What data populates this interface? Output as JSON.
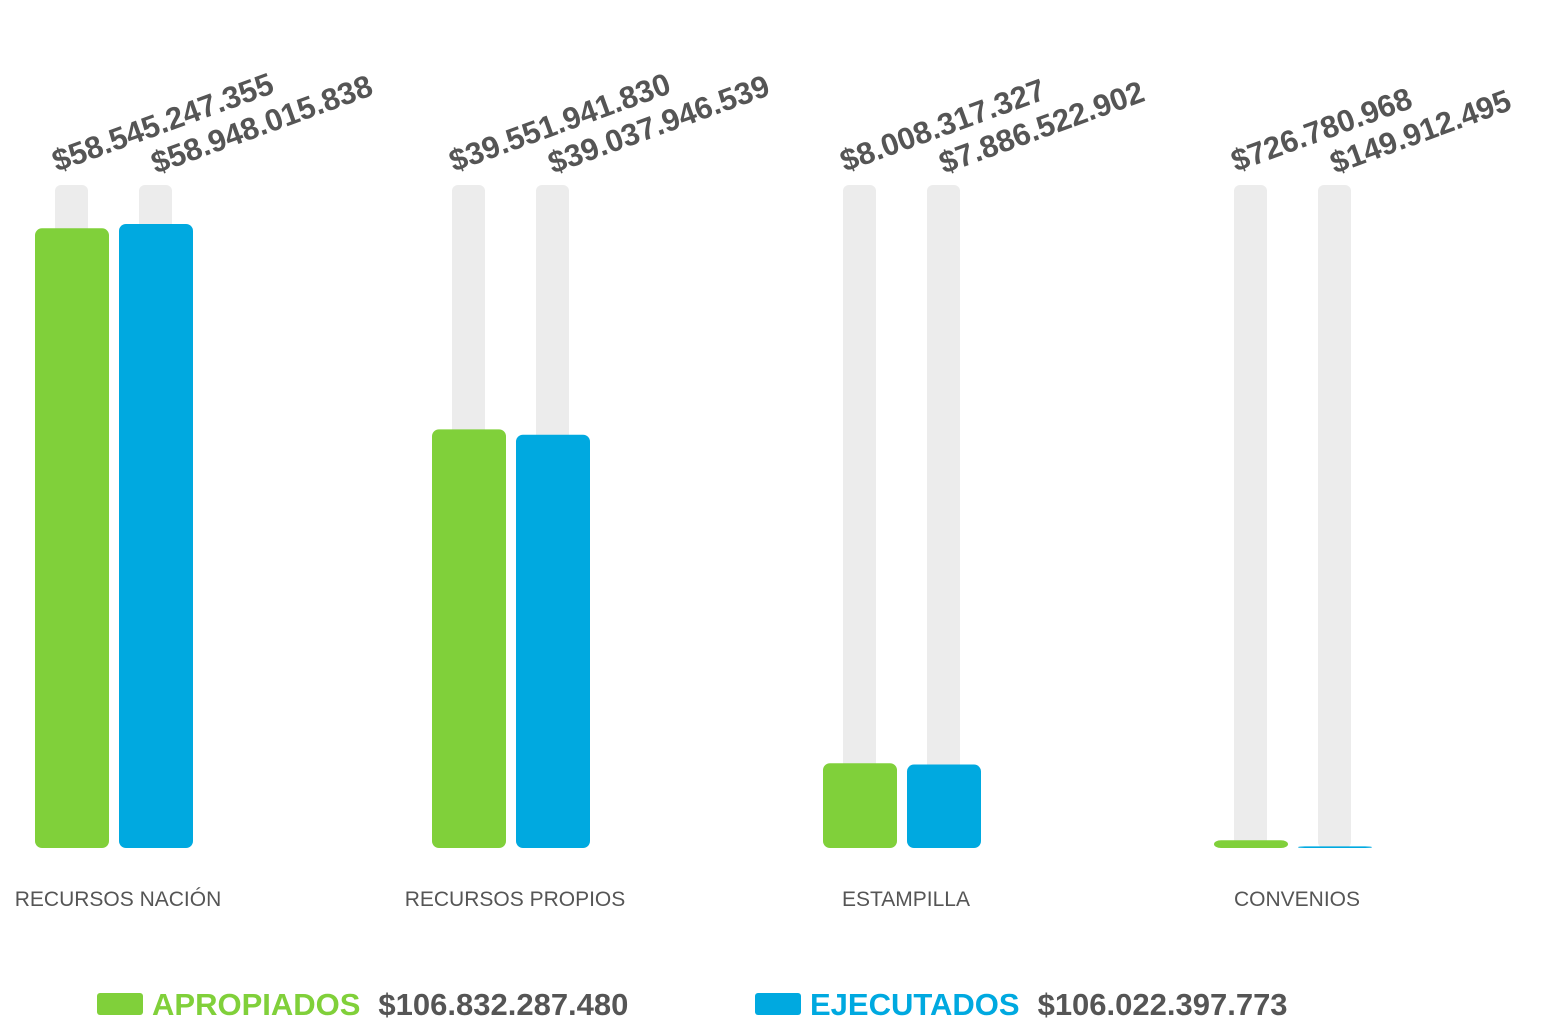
{
  "chart_data": {
    "type": "bar",
    "categories": [
      "RECURSOS NACIÓN",
      "RECURSOS PROPIOS",
      "ESTAMPILLA",
      "CONVENIOS"
    ],
    "series": [
      {
        "name": "APROPIADOS",
        "color": "#80d03a",
        "total": "$106.832.287.480",
        "values": [
          58545247355,
          39551941830,
          8008317327,
          726780968
        ],
        "value_labels": [
          "$58.545.247.355",
          "$39.551.941.830",
          "$8.008.317.327",
          "$726.780.968"
        ]
      },
      {
        "name": "EJECUTADOS",
        "color": "#00a9e0",
        "total": "$106.022.397.773",
        "values": [
          58948015838,
          39037946539,
          7886522902,
          149912495
        ],
        "value_labels": [
          "$58.948.015.838",
          "$39.037.946.539",
          "$7.886.522.902",
          "$149.912.495"
        ]
      }
    ]
  }
}
